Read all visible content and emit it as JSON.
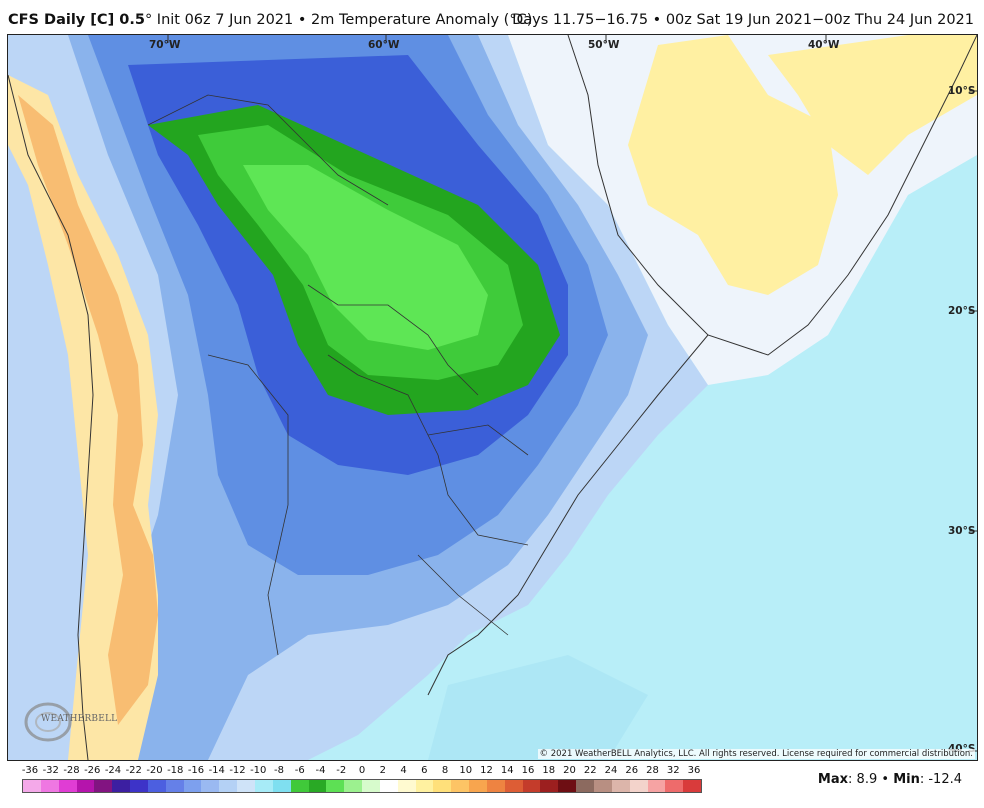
{
  "header": {
    "model": "CFS Daily [C] 0.5",
    "degree_mark": "°",
    "init": "Init 06z 7 Jun 2021",
    "separator": "•",
    "field": "2m Temperature Anomaly (°C)",
    "valid": "Days 11.75−16.75 • 00z Sat 19 Jun 2021−00z Thu 24 Jun 2021"
  },
  "map": {
    "longitude_labels": [
      "70°W",
      "60°W",
      "50°W",
      "40°W"
    ],
    "latitude_labels": [
      "10°S",
      "20°S",
      "30°S",
      "40°S"
    ],
    "copyright": "© 2021 WeatherBELL Analytics, LLC. All rights reserved. License required for commercial distribution.",
    "logo_text": "WEATHERBELL",
    "logo_icon": "weatherbell-swirl-icon"
  },
  "legend": {
    "ticks": [
      "-36",
      "-32",
      "-28",
      "-26",
      "-24",
      "-22",
      "-20",
      "-18",
      "-16",
      "-14",
      "-12",
      "-10",
      "-8",
      "-6",
      "-4",
      "-2",
      "0",
      "2",
      "4",
      "6",
      "8",
      "10",
      "12",
      "14",
      "16",
      "18",
      "20",
      "22",
      "24",
      "26",
      "28",
      "32",
      "36"
    ],
    "colors": [
      "#f4a9e9",
      "#ef77e2",
      "#e03dd4",
      "#b514ac",
      "#821481",
      "#3c1fa1",
      "#3d33c8",
      "#4c5fe0",
      "#6580e8",
      "#7da0ee",
      "#9ab9f1",
      "#b4d1f5",
      "#cfe3f8",
      "#a7ebf7",
      "#7fdff0",
      "#40c93a",
      "#29a925",
      "#5de054",
      "#9cf18f",
      "#d7fbcc",
      "#ffffff",
      "#fffad0",
      "#fff1a0",
      "#ffe07a",
      "#fdc465",
      "#f8a54e",
      "#ee8341",
      "#dd5d35",
      "#c43c2b",
      "#9c1f1f",
      "#6e0e13",
      "#8c6a5f",
      "#b88f82",
      "#dcb5aa",
      "#f3d3cb",
      "#f6a3a3",
      "#ee6b6b",
      "#d93b3b"
    ],
    "colorbar_icon": "temperature-anomaly-colorbar"
  },
  "stats": {
    "max_label": "Max",
    "max_value": "8.9",
    "min_label": "Min",
    "min_value": "-12.4",
    "separator": "•"
  }
}
